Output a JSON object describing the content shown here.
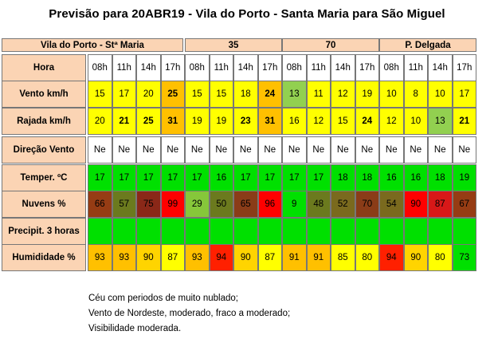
{
  "title": "Previsão para 20ABR19 - Vila do Porto - Santa Maria para São Miguel",
  "groups": [
    "Vila do Porto - Stª Maria",
    "35",
    "70",
    "P. Delgada"
  ],
  "hours": [
    "08h",
    "11h",
    "14h",
    "17h"
  ],
  "rows": [
    {
      "label": "Vento km/h",
      "cells": [
        {
          "v": "15",
          "bg": "#ffff00"
        },
        {
          "v": "17",
          "bg": "#ffff00"
        },
        {
          "v": "20",
          "bg": "#ffff00"
        },
        {
          "v": "25",
          "bg": "#ffc000",
          "b": true
        },
        {
          "v": "15",
          "bg": "#ffff00"
        },
        {
          "v": "15",
          "bg": "#ffff00"
        },
        {
          "v": "18",
          "bg": "#ffff00"
        },
        {
          "v": "24",
          "bg": "#ffc000",
          "b": true
        },
        {
          "v": "13",
          "bg": "#92d050"
        },
        {
          "v": "11",
          "bg": "#ffff00"
        },
        {
          "v": "12",
          "bg": "#ffff00"
        },
        {
          "v": "19",
          "bg": "#ffff00"
        },
        {
          "v": "10",
          "bg": "#ffff00"
        },
        {
          "v": "8",
          "bg": "#ffff00"
        },
        {
          "v": "10",
          "bg": "#ffff00"
        },
        {
          "v": "17",
          "bg": "#ffff00"
        }
      ]
    },
    {
      "label": "Rajada km/h",
      "cells": [
        {
          "v": "20",
          "bg": "#ffff00"
        },
        {
          "v": "21",
          "bg": "#ffff00",
          "b": true
        },
        {
          "v": "25",
          "bg": "#ffff00",
          "b": true
        },
        {
          "v": "31",
          "bg": "#ffc000",
          "b": true
        },
        {
          "v": "19",
          "bg": "#ffff00"
        },
        {
          "v": "19",
          "bg": "#ffff00"
        },
        {
          "v": "23",
          "bg": "#ffff00",
          "b": true
        },
        {
          "v": "31",
          "bg": "#ffc000",
          "b": true
        },
        {
          "v": "16",
          "bg": "#ffff00"
        },
        {
          "v": "12",
          "bg": "#ffff00"
        },
        {
          "v": "15",
          "bg": "#ffff00"
        },
        {
          "v": "24",
          "bg": "#ffff00",
          "b": true
        },
        {
          "v": "12",
          "bg": "#ffff00"
        },
        {
          "v": "10",
          "bg": "#ffff00"
        },
        {
          "v": "13",
          "bg": "#92d050"
        },
        {
          "v": "21",
          "bg": "#ffff00",
          "b": true
        }
      ]
    },
    {
      "label": "Direção  Vento",
      "cells": [
        {
          "v": "Ne",
          "bg": "#ffffff"
        },
        {
          "v": "Ne",
          "bg": "#ffffff"
        },
        {
          "v": "Ne",
          "bg": "#ffffff"
        },
        {
          "v": "Ne",
          "bg": "#ffffff"
        },
        {
          "v": "Ne",
          "bg": "#ffffff"
        },
        {
          "v": "Ne",
          "bg": "#ffffff"
        },
        {
          "v": "Ne",
          "bg": "#ffffff"
        },
        {
          "v": "Ne",
          "bg": "#ffffff"
        },
        {
          "v": "Ne",
          "bg": "#ffffff"
        },
        {
          "v": "Ne",
          "bg": "#ffffff"
        },
        {
          "v": "Ne",
          "bg": "#ffffff"
        },
        {
          "v": "Ne",
          "bg": "#ffffff"
        },
        {
          "v": "Ne",
          "bg": "#ffffff"
        },
        {
          "v": "Ne",
          "bg": "#ffffff"
        },
        {
          "v": "Ne",
          "bg": "#ffffff"
        },
        {
          "v": "Ne",
          "bg": "#ffffff"
        }
      ]
    },
    {
      "label": "Temper. ºC",
      "cells": [
        {
          "v": "17",
          "bg": "#00e000"
        },
        {
          "v": "17",
          "bg": "#00e000"
        },
        {
          "v": "17",
          "bg": "#00e000"
        },
        {
          "v": "17",
          "bg": "#00e000"
        },
        {
          "v": "17",
          "bg": "#00e000"
        },
        {
          "v": "16",
          "bg": "#00e000"
        },
        {
          "v": "17",
          "bg": "#00e000"
        },
        {
          "v": "17",
          "bg": "#00e000"
        },
        {
          "v": "17",
          "bg": "#00e000"
        },
        {
          "v": "17",
          "bg": "#00e000"
        },
        {
          "v": "18",
          "bg": "#00e000"
        },
        {
          "v": "18",
          "bg": "#00e000"
        },
        {
          "v": "16",
          "bg": "#00e000"
        },
        {
          "v": "16",
          "bg": "#00e000"
        },
        {
          "v": "18",
          "bg": "#00e000"
        },
        {
          "v": "19",
          "bg": "#00e000"
        }
      ]
    },
    {
      "label": "Nuvens %",
      "cells": [
        {
          "v": "66",
          "bg": "#963c14"
        },
        {
          "v": "57",
          "bg": "#6b7a1e"
        },
        {
          "v": "75",
          "bg": "#8a2818"
        },
        {
          "v": "99",
          "bg": "#ff0000"
        },
        {
          "v": "29",
          "bg": "#86c73a"
        },
        {
          "v": "50",
          "bg": "#6b7a1e"
        },
        {
          "v": "65",
          "bg": "#8a3c18"
        },
        {
          "v": "96",
          "bg": "#ff0000"
        },
        {
          "v": "9",
          "bg": "#00e000"
        },
        {
          "v": "48",
          "bg": "#6b7a1e"
        },
        {
          "v": "52",
          "bg": "#7a6a1e"
        },
        {
          "v": "70",
          "bg": "#8a3c18"
        },
        {
          "v": "54",
          "bg": "#7a6a1e"
        },
        {
          "v": "90",
          "bg": "#ff0000"
        },
        {
          "v": "87",
          "bg": "#d81818"
        },
        {
          "v": "67",
          "bg": "#963c14"
        }
      ]
    },
    {
      "label": "Precipit.    3 horas",
      "cells": [
        {
          "v": "",
          "bg": "#00e000"
        },
        {
          "v": "",
          "bg": "#00e000"
        },
        {
          "v": "",
          "bg": "#00e000"
        },
        {
          "v": "",
          "bg": "#00e000"
        },
        {
          "v": "",
          "bg": "#00e000"
        },
        {
          "v": "",
          "bg": "#00e000"
        },
        {
          "v": "",
          "bg": "#00e000"
        },
        {
          "v": "",
          "bg": "#00e000"
        },
        {
          "v": "",
          "bg": "#00e000"
        },
        {
          "v": "",
          "bg": "#00e000"
        },
        {
          "v": "",
          "bg": "#00e000"
        },
        {
          "v": "",
          "bg": "#00e000"
        },
        {
          "v": "",
          "bg": "#00e000"
        },
        {
          "v": "",
          "bg": "#00e000"
        },
        {
          "v": "",
          "bg": "#00e000"
        },
        {
          "v": "",
          "bg": "#00e000"
        }
      ]
    },
    {
      "label": "Humididade %",
      "cells": [
        {
          "v": "93",
          "bg": "#ffc000"
        },
        {
          "v": "93",
          "bg": "#ffc000"
        },
        {
          "v": "90",
          "bg": "#ffd400"
        },
        {
          "v": "87",
          "bg": "#ffff00"
        },
        {
          "v": "93",
          "bg": "#ffc000"
        },
        {
          "v": "94",
          "bg": "#ff2000"
        },
        {
          "v": "90",
          "bg": "#ffd400"
        },
        {
          "v": "87",
          "bg": "#ffff00"
        },
        {
          "v": "91",
          "bg": "#ffc000"
        },
        {
          "v": "91",
          "bg": "#ffc000"
        },
        {
          "v": "85",
          "bg": "#ffff00"
        },
        {
          "v": "80",
          "bg": "#ffff00"
        },
        {
          "v": "94",
          "bg": "#ff2000"
        },
        {
          "v": "90",
          "bg": "#ffd400"
        },
        {
          "v": "80",
          "bg": "#ffff00"
        },
        {
          "v": "73",
          "bg": "#00e000"
        }
      ]
    }
  ],
  "colors": {
    "header": "#fbd4b4",
    "label": "#fbd4b4",
    "white": "#ffffff"
  },
  "notes": [
    "Céu  com periodos de muito nublado;",
    "Vento de Nordeste, moderado, fraco a moderado;",
    "Visibilidade moderada."
  ]
}
